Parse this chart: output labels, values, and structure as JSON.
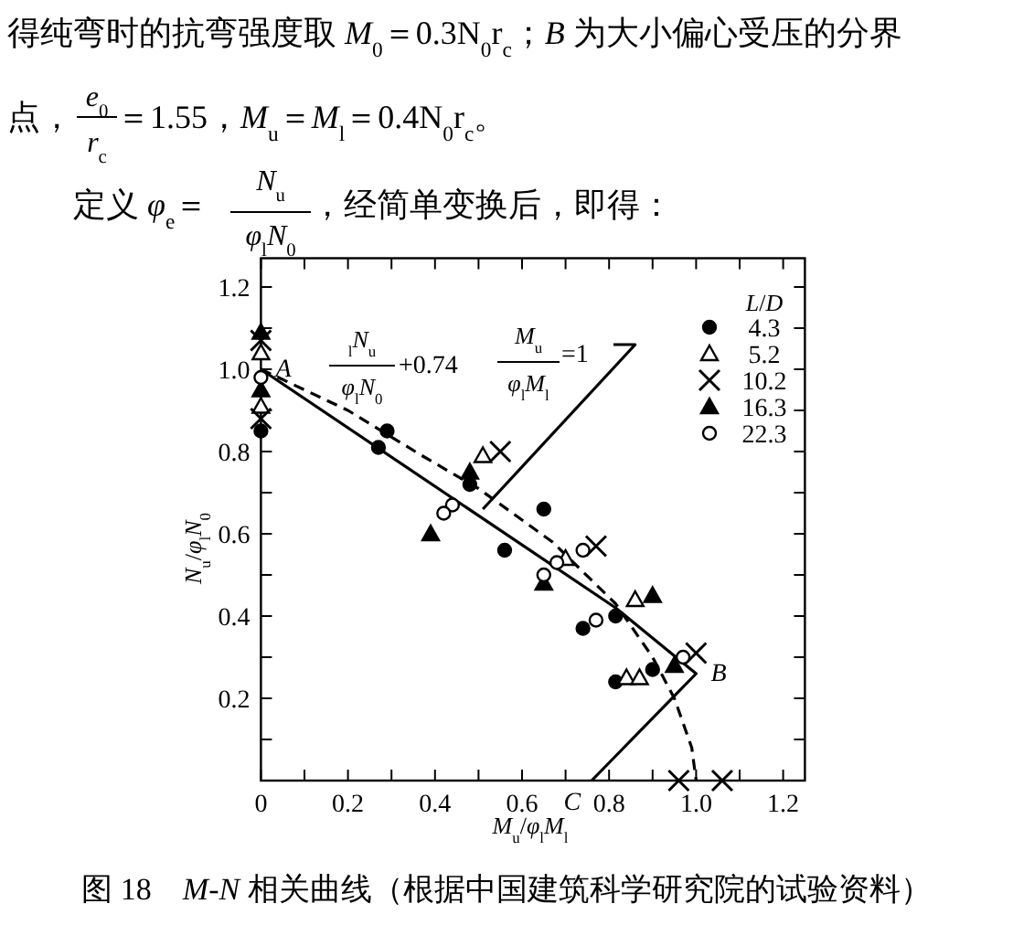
{
  "chart_data": {
    "type": "scatter",
    "title": "图 18　*M-N* 相关曲线（根据中国建筑科学研究院的试验资料）",
    "xlabel": "*M*$_{u}$/*φ*$_{l}$*M*$_{l}$",
    "ylabel": "*N*$_{u}$/*φ*$_{l}$*N*$_{0}$",
    "legend_title": "*L*/*D*",
    "legend": "top right",
    "xlim": [
      0,
      1.25
    ],
    "ylim": [
      0,
      1.27
    ],
    "xticks": [
      0,
      {
        "value": 0.1,
        "label": null
      },
      0.2,
      {
        "value": 0.3,
        "label": null
      },
      0.4,
      {
        "value": 0.5,
        "label": null
      },
      0.6,
      {
        "value": 0.7,
        "label": null
      },
      0.8,
      {
        "value": 0.9,
        "label": null
      },
      {
        "value": 1,
        "label": "1.0"
      },
      {
        "value": 1.1,
        "label": null
      },
      1.2
    ],
    "yticks": [
      {
        "value": 0,
        "label": null
      },
      {
        "value": 0.1,
        "label": null
      },
      0.2,
      {
        "value": 0.3,
        "label": null
      },
      0.4,
      {
        "value": 0.5,
        "label": null
      },
      0.6,
      {
        "value": 0.7,
        "label": null
      },
      0.8,
      {
        "value": 0.9,
        "label": null
      },
      {
        "value": 1,
        "label": "1.0"
      },
      {
        "value": 1.1,
        "label": null
      },
      1.2
    ],
    "annotations": [
      "得纯弯时的抗弯强度取 *M*$_{0}$＝0.3N$_{0}$r$_{c}$；*B* 为大小偏心受压的分界",
      "点，",
      "*e*$_{0}$",
      "*r*$_{c}$",
      "＝1.55，*M*$_{u}$＝*M*$_{l}$＝0.4N$_{0}$r$_{c}$。",
      "定义 *φ*$_{e}$＝",
      "*N*$_{u}$",
      "*φ*$_{l}$*N*$_{0}$",
      "，经简单变换后，即得：",
      "$_{l}$*N*$_{u}$",
      "*φ*$_{l}$*N*$_{0}$",
      "+0.74",
      "*M*$_{u}$",
      "*φ*$_{l}$*M*$_{l}$",
      "=1",
      {
        "text": "A",
        "x": 0,
        "y": 1.0
      },
      {
        "text": "B",
        "x": 1.0,
        "y": 0.26
      },
      {
        "text": "C",
        "x": 0.76,
        "y": 0
      }
    ],
    "series": [
      {
        "type": "line",
        "color": "#000000",
        "line_style": "solid",
        "marker": "none",
        "x": [
          0,
          0.815,
          1.0,
          0.76
        ],
        "values": [
          1.0,
          0.42,
          0.26,
          0
        ]
      },
      {
        "type": "line",
        "color": "#000000",
        "line_style": "dashed",
        "marker": "none",
        "x": [
          0,
          0.2,
          0.37,
          0.5,
          0.67,
          0.815,
          0.9,
          0.95,
          0.99,
          1.0
        ],
        "values": [
          1.0,
          0.9,
          0.79,
          0.71,
          0.58,
          0.43,
          0.3,
          0.2,
          0.08,
          0
        ]
      },
      {
        "type": "line",
        "color": "#000000",
        "line_style": "solid",
        "marker": "none",
        "x": [
          0.81,
          0.86,
          0.51
        ],
        "values": [
          1.06,
          1.06,
          0.66
        ]
      },
      {
        "name": "4.3",
        "color": "#000000",
        "marker": "circle",
        "x": [
          0,
          0.27,
          0.29,
          0.48,
          0.56,
          0.65,
          0.74,
          0.815,
          0.815,
          0.9
        ],
        "values": [
          0.85,
          0.81,
          0.85,
          0.72,
          0.56,
          0.66,
          0.37,
          0.4,
          0.24,
          0.27
        ]
      },
      {
        "name": "5.2",
        "color": "#ffffff",
        "marker": "triangle",
        "x": [
          0,
          0,
          0.51,
          0.7,
          0.86,
          0.84,
          0.87
        ],
        "values": [
          1.04,
          0.91,
          0.79,
          0.54,
          0.44,
          0.25,
          0.25
        ]
      },
      {
        "name": "10.2",
        "color": "#000000",
        "marker": "cross",
        "x": [
          0,
          0,
          0.55,
          0.77,
          1.0,
          0.96,
          1.06
        ],
        "values": [
          1.07,
          0.88,
          0.8,
          0.57,
          0.31,
          0,
          0
        ]
      },
      {
        "name": "16.3",
        "color": "#000000",
        "marker": "triangle",
        "x": [
          0,
          0,
          0.48,
          0.39,
          0.65,
          0.9,
          0.95
        ],
        "values": [
          1.09,
          0.95,
          0.75,
          0.6,
          0.48,
          0.45,
          0.28
        ]
      },
      {
        "name": "22.3",
        "color": "#ffffff",
        "marker": "circle",
        "x": [
          0,
          0.44,
          0.42,
          0.65,
          0.68,
          0.74,
          0.77,
          0.97
        ],
        "values": [
          0.98,
          0.67,
          0.65,
          0.5,
          0.53,
          0.56,
          0.39,
          0.3
        ]
      }
    ]
  }
}
